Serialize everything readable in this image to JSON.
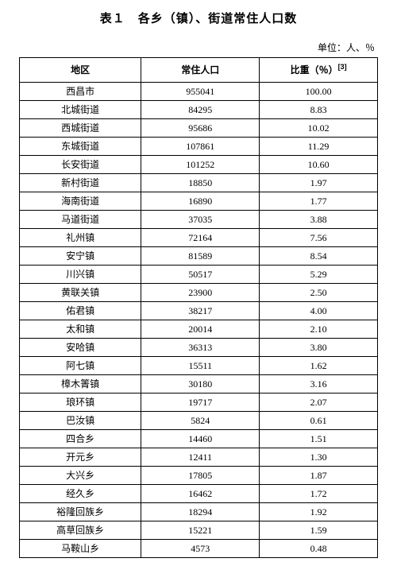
{
  "title": "表１　各乡（镇）、街道常住人口数",
  "unit": "单位：人、％",
  "columns": [
    "地区",
    "常住人口",
    "比重（％）"
  ],
  "footnote_mark": "[3]",
  "rows": [
    {
      "region": "西昌市",
      "pop": "955041",
      "pct": "100.00"
    },
    {
      "region": "北城街道",
      "pop": "84295",
      "pct": "8.83"
    },
    {
      "region": "西城街道",
      "pop": "95686",
      "pct": "10.02"
    },
    {
      "region": "东城街道",
      "pop": "107861",
      "pct": "11.29"
    },
    {
      "region": "长安街道",
      "pop": "101252",
      "pct": "10.60"
    },
    {
      "region": "新村街道",
      "pop": "18850",
      "pct": "1.97"
    },
    {
      "region": "海南街道",
      "pop": "16890",
      "pct": "1.77"
    },
    {
      "region": "马道街道",
      "pop": "37035",
      "pct": "3.88"
    },
    {
      "region": "礼州镇",
      "pop": "72164",
      "pct": "7.56"
    },
    {
      "region": "安宁镇",
      "pop": "81589",
      "pct": "8.54"
    },
    {
      "region": "川兴镇",
      "pop": "50517",
      "pct": "5.29"
    },
    {
      "region": "黄联关镇",
      "pop": "23900",
      "pct": "2.50"
    },
    {
      "region": "佑君镇",
      "pop": "38217",
      "pct": "4.00"
    },
    {
      "region": "太和镇",
      "pop": "20014",
      "pct": "2.10"
    },
    {
      "region": "安哈镇",
      "pop": "36313",
      "pct": "3.80"
    },
    {
      "region": "阿七镇",
      "pop": "15511",
      "pct": "1.62"
    },
    {
      "region": "樟木箐镇",
      "pop": "30180",
      "pct": "3.16"
    },
    {
      "region": "琅环镇",
      "pop": "19717",
      "pct": "2.07"
    },
    {
      "region": "巴汝镇",
      "pop": "5824",
      "pct": "0.61"
    },
    {
      "region": "四合乡",
      "pop": "14460",
      "pct": "1.51"
    },
    {
      "region": "开元乡",
      "pop": "12411",
      "pct": "1.30"
    },
    {
      "region": "大兴乡",
      "pop": "17805",
      "pct": "1.87"
    },
    {
      "region": "经久乡",
      "pop": "16462",
      "pct": "1.72"
    },
    {
      "region": "裕隆回族乡",
      "pop": "18294",
      "pct": "1.92"
    },
    {
      "region": "高草回族乡",
      "pop": "15221",
      "pct": "1.59"
    },
    {
      "region": "马鞍山乡",
      "pop": "4573",
      "pct": "0.48"
    }
  ]
}
